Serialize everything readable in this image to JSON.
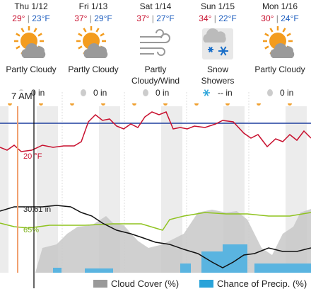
{
  "days": [
    {
      "day": "Thu 1/12",
      "high": "29°",
      "low": "23°F",
      "condition": "Partly Cloudy",
      "precip": "0 in"
    },
    {
      "day": "Fri 1/13",
      "high": "37°",
      "low": "29°F",
      "condition": "Partly Cloudy",
      "precip": "0 in"
    },
    {
      "day": "Sat 1/14",
      "high": "37°",
      "low": "27°F",
      "condition": "Partly Cloudy/Wind",
      "precip": "0 in"
    },
    {
      "day": "Sun 1/15",
      "high": "34°",
      "low": "22°F",
      "condition": "Snow Showers",
      "precip": "-- in"
    },
    {
      "day": "Mon 1/16",
      "high": "30°",
      "low": "24°F",
      "condition": "Partly Cloudy",
      "precip": "0 in"
    }
  ],
  "separator": "|",
  "time_marker": "7 AM",
  "graph_labels": {
    "temperature": "20 °F",
    "pressure": "30.61 in",
    "humidity": "65%"
  },
  "legend": {
    "cloud_cover": "Cloud Cover (%)",
    "precip_chance": "Chance of Precip. (%)"
  }
}
